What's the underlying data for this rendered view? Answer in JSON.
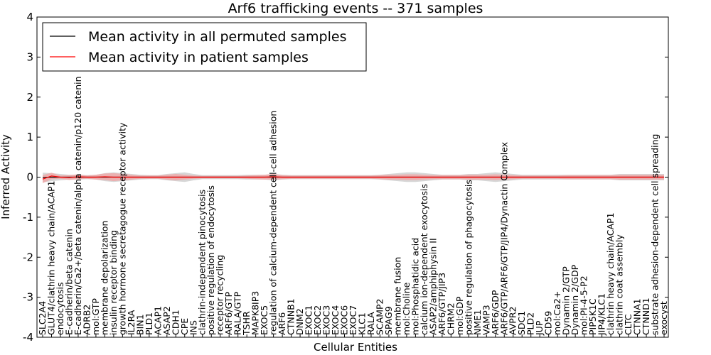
{
  "chart_data": {
    "type": "line",
    "title": "Arf6 trafficking events -- 371 samples",
    "xlabel": "Cellular Entities",
    "ylabel": "Inferred Activity",
    "ylim": [
      -4,
      4
    ],
    "yticks": [
      -4,
      -3,
      -2,
      -1,
      0,
      1,
      2,
      3,
      4
    ],
    "grid": false,
    "legend": "top-left",
    "categories": [
      "SLC2A4",
      "GLUT4/clathrin heavy chain/ACAP1",
      "endocytosis",
      "E-cadherin/beta catenin",
      "E-cadherin/Ca2+/beta catenin/alpha catenin/p120 catenin",
      "ADRB2",
      "mol:GTP",
      "membrane depolarization",
      "insulin receptor binding",
      "growth hormone secretagogue receptor activity",
      "IL2RA",
      "BIN1",
      "PLD1",
      "ACAP1",
      "ASAP2",
      "CDH1",
      "CPE",
      "INS",
      "clathrin-independent pinocytosis",
      "positive regulation of endocytosis",
      "receptor recycling",
      "ARF6/GTP",
      "RALA/GTP",
      "TSHR",
      "MAPK8IP3",
      "EXOC5",
      "regulation of calcium-dependent cell-cell adhesion",
      "ARF6",
      "CTNNB1",
      "DNM2",
      "EXOC1",
      "EXOC2",
      "EXOC3",
      "EXOC4",
      "EXOC6",
      "EXOC7",
      "KLC1",
      "RALA",
      "SCAMP2",
      "SPAG9",
      "membrane fusion",
      "mol:Choline",
      "mol:Phosphatidic acid",
      "calcium ion-dependent exocytosis",
      "ASAP2/amphiphysin II",
      "ARF6/GTP/JIP3",
      "CHRM2",
      "mol:GDP",
      "positive regulation of phagocytosis",
      "NME1",
      "VAMP3",
      "ARF6/GDP",
      "ARF6/GTP/ARF6/GTP/JIP4/Dynactin Complex",
      "AVPR2",
      "SDC1",
      "PLD2",
      "JUP",
      "CD59",
      "mol:Ca2+",
      "Dynamin 2/GTP",
      "Dynamin 2/GDP",
      "mol:PI-4-5-P2",
      "PIP5K1C",
      "JIP4/KLC1",
      "clathrin heavy chain/ACAP1",
      "clathrin coat assembly",
      "CLTC",
      "CTNNA1",
      "CTNND1",
      "substrate adhesion-dependent cell spreading",
      "exocyst"
    ],
    "series": [
      {
        "name": "Mean activity in all permuted samples",
        "color": "#000000",
        "values": [
          -0.01,
          0.0,
          0.0,
          0.0,
          0.0,
          0.0,
          0.0,
          0.0,
          0.0,
          0.0,
          0.0,
          0.0,
          0.0,
          0.0,
          0.0,
          0.0,
          0.0,
          0.0,
          0.0,
          0.0,
          0.0,
          0.0,
          0.0,
          0.0,
          0.0,
          0.0,
          0.0,
          0.0,
          0.0,
          0.0,
          0.0,
          0.0,
          0.0,
          0.0,
          0.0,
          0.0,
          0.0,
          0.0,
          0.0,
          0.0,
          0.0,
          0.0,
          0.0,
          0.0,
          0.0,
          0.0,
          0.0,
          0.0,
          0.0,
          0.0,
          0.0,
          0.0,
          0.0,
          0.0,
          0.0,
          0.0,
          0.0,
          0.0,
          0.0,
          0.0,
          0.0,
          0.0,
          0.0,
          0.0,
          0.0,
          0.0,
          0.0,
          0.0,
          0.0,
          0.0,
          0.0
        ],
        "band": [
          0.12,
          0.1,
          0.08,
          0.06,
          0.06,
          0.05,
          0.06,
          0.1,
          0.12,
          0.1,
          0.08,
          0.06,
          0.05,
          0.05,
          0.08,
          0.1,
          0.12,
          0.08,
          0.05,
          0.05,
          0.05,
          0.05,
          0.05,
          0.06,
          0.06,
          0.06,
          0.08,
          0.06,
          0.05,
          0.05,
          0.05,
          0.05,
          0.05,
          0.05,
          0.05,
          0.05,
          0.05,
          0.05,
          0.06,
          0.08,
          0.1,
          0.12,
          0.12,
          0.1,
          0.08,
          0.06,
          0.06,
          0.06,
          0.08,
          0.08,
          0.1,
          0.12,
          0.1,
          0.08,
          0.06,
          0.06,
          0.06,
          0.06,
          0.06,
          0.06,
          0.06,
          0.06,
          0.06,
          0.06,
          0.06,
          0.08,
          0.08,
          0.08,
          0.08,
          0.08,
          0.08
        ],
        "band_color": "#c8c8c8"
      },
      {
        "name": "Mean activity in patient samples",
        "color": "#ff0000",
        "values": [
          -0.05,
          0.03,
          0.0,
          -0.01,
          0.01,
          0.0,
          0.0,
          0.01,
          0.0,
          0.0,
          0.0,
          0.0,
          0.0,
          0.0,
          0.0,
          0.0,
          0.0,
          0.0,
          0.0,
          0.0,
          0.0,
          0.0,
          0.0,
          0.0,
          0.0,
          0.0,
          0.01,
          0.0,
          0.0,
          0.0,
          0.0,
          0.0,
          0.0,
          0.0,
          0.0,
          0.0,
          0.0,
          0.0,
          0.0,
          0.0,
          0.0,
          0.0,
          0.0,
          0.0,
          0.0,
          0.0,
          0.0,
          0.0,
          0.0,
          0.0,
          0.0,
          0.0,
          0.0,
          0.0,
          0.0,
          0.0,
          0.0,
          0.0,
          0.0,
          0.0,
          0.0,
          0.0,
          0.0,
          0.0,
          0.0,
          0.0,
          0.0,
          0.0,
          0.0,
          0.0,
          0.0
        ],
        "band": [
          0.1,
          0.08,
          0.04,
          0.06,
          0.06,
          0.04,
          0.06,
          0.08,
          0.1,
          0.08,
          0.06,
          0.04,
          0.04,
          0.04,
          0.06,
          0.08,
          0.06,
          0.04,
          0.03,
          0.03,
          0.03,
          0.03,
          0.03,
          0.04,
          0.05,
          0.06,
          0.07,
          0.05,
          0.04,
          0.04,
          0.04,
          0.04,
          0.04,
          0.04,
          0.04,
          0.04,
          0.04,
          0.04,
          0.05,
          0.06,
          0.06,
          0.07,
          0.07,
          0.06,
          0.05,
          0.05,
          0.05,
          0.05,
          0.06,
          0.06,
          0.06,
          0.07,
          0.06,
          0.05,
          0.04,
          0.04,
          0.04,
          0.04,
          0.04,
          0.05,
          0.05,
          0.05,
          0.05,
          0.05,
          0.05,
          0.06,
          0.06,
          0.06,
          0.06,
          0.06,
          0.06
        ],
        "band_color": "#f4a0a0"
      }
    ]
  }
}
